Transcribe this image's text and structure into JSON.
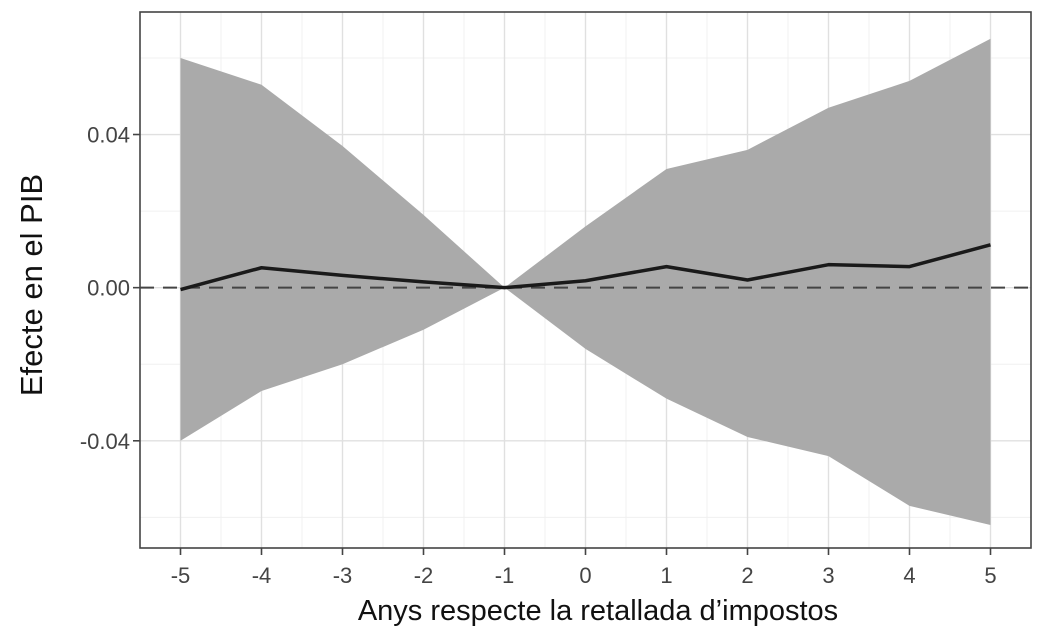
{
  "chart_data": {
    "type": "line",
    "title": "",
    "xlabel": "Anys respecte la retallada d’impostos",
    "ylabel": "Efecte en el PIB",
    "x": [
      -5,
      -4,
      -3,
      -2,
      -1,
      0,
      1,
      2,
      3,
      4,
      5
    ],
    "xticks": [
      "-5",
      "-4",
      "-3",
      "-2",
      "-1",
      "0",
      "1",
      "2",
      "3",
      "4",
      "5"
    ],
    "yticks": [
      {
        "value": 0.04,
        "label": "0.04"
      },
      {
        "value": 0.0,
        "label": "0.00"
      },
      {
        "value": -0.04,
        "label": "-0.04"
      }
    ],
    "xlim": [
      -5.5,
      5.5
    ],
    "ylim": [
      -0.068,
      0.072
    ],
    "grid": true,
    "series": [
      {
        "values": [
          -0.0005,
          0.0052,
          0.0032,
          0.0015,
          0.0,
          0.0018,
          0.0055,
          0.002,
          0.006,
          0.0055,
          0.0112
        ],
        "color": "#1a1a1a"
      }
    ],
    "confidence_band": {
      "upper": [
        0.06,
        0.053,
        0.037,
        0.019,
        0.0,
        0.016,
        0.031,
        0.036,
        0.047,
        0.054,
        0.065
      ],
      "lower": [
        -0.04,
        -0.027,
        -0.02,
        -0.011,
        0.0,
        -0.016,
        -0.029,
        -0.039,
        -0.044,
        -0.057,
        -0.062
      ],
      "color": "#aaaaaa"
    },
    "reference_line": {
      "y": 0.0,
      "style": "dashed",
      "color": "#444444"
    },
    "colors": {
      "panel_border": "#444444",
      "grid_major": "#e0e0e0",
      "grid_minor": "#f0f0f0"
    }
  }
}
